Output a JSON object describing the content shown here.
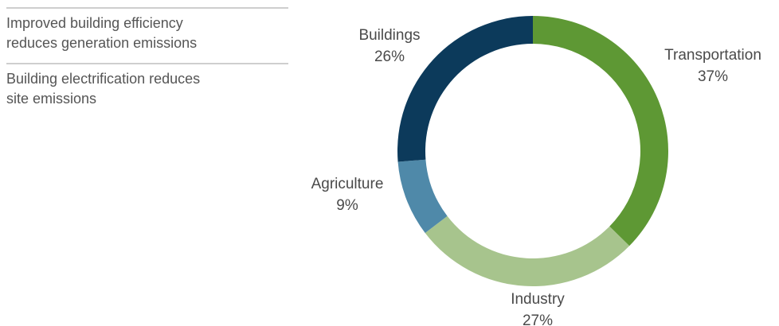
{
  "chart_data": {
    "type": "donut",
    "annotations": [
      [
        "Improved building efficiency",
        "reduces generation emissions"
      ],
      [
        "Building electrification reduces",
        "site emissions"
      ]
    ],
    "categories": [
      "Transportation",
      "Industry",
      "Agriculture",
      "Buildings"
    ],
    "values": [
      37,
      27,
      9,
      26
    ],
    "value_labels": [
      "37%",
      "27%",
      "9%",
      "26%"
    ],
    "colors": [
      "#5e9834",
      "#a7c48d",
      "#4f89a9",
      "#0c3a5b"
    ]
  }
}
